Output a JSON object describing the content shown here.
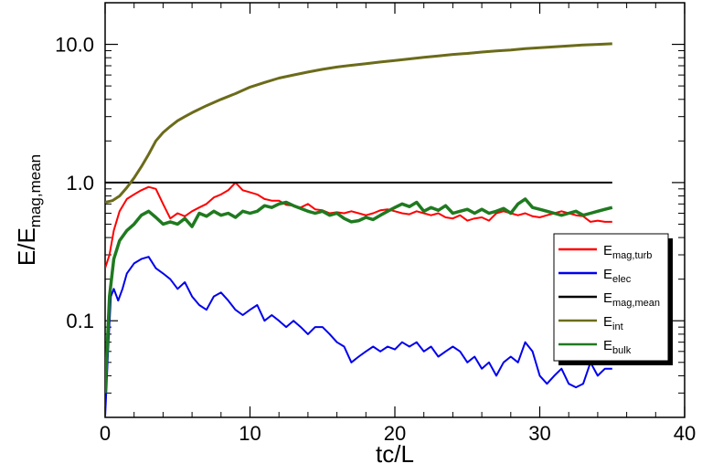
{
  "chart_data": {
    "type": "line",
    "xlabel": "tc/L",
    "ylabel_main": "E/E",
    "ylabel_sub": "mag,mean",
    "xlim": [
      0,
      40
    ],
    "ylim": [
      0.02,
      20
    ],
    "yscale": "log",
    "x_ticks": [
      0,
      10,
      20,
      30,
      40
    ],
    "y_ticks": [
      {
        "value": 0.1,
        "label": "0.1"
      },
      {
        "value": 1.0,
        "label": "1.0"
      },
      {
        "value": 10.0,
        "label": "10.0"
      }
    ],
    "legend_position": "right",
    "series": [
      {
        "name": "E",
        "sub": "mag,turb",
        "color": "#ff0000",
        "width": 2,
        "x": [
          0,
          0.3,
          0.6,
          1,
          1.5,
          2,
          2.5,
          3,
          3.5,
          4,
          4.5,
          5,
          5.5,
          6,
          6.5,
          7,
          7.5,
          8,
          8.5,
          9,
          9.5,
          10,
          10.5,
          11,
          11.5,
          12,
          12.5,
          13,
          13.5,
          14,
          14.5,
          15,
          15.5,
          16,
          16.5,
          17,
          17.5,
          18,
          18.5,
          19,
          19.5,
          20,
          20.5,
          21,
          21.5,
          22,
          22.5,
          23,
          23.5,
          24,
          24.5,
          25,
          25.5,
          26,
          26.5,
          27,
          27.5,
          28,
          28.5,
          29,
          29.5,
          30,
          30.5,
          31,
          31.5,
          32,
          32.5,
          33,
          33.5,
          34,
          34.5,
          35
        ],
        "y": [
          0.24,
          0.3,
          0.45,
          0.62,
          0.76,
          0.82,
          0.88,
          0.93,
          0.9,
          0.7,
          0.55,
          0.6,
          0.57,
          0.62,
          0.66,
          0.7,
          0.78,
          0.82,
          0.88,
          1.0,
          0.88,
          0.85,
          0.82,
          0.76,
          0.74,
          0.74,
          0.69,
          0.68,
          0.66,
          0.7,
          0.64,
          0.63,
          0.6,
          0.61,
          0.6,
          0.62,
          0.6,
          0.58,
          0.6,
          0.63,
          0.64,
          0.62,
          0.6,
          0.59,
          0.62,
          0.6,
          0.58,
          0.6,
          0.56,
          0.55,
          0.58,
          0.53,
          0.55,
          0.56,
          0.53,
          0.6,
          0.62,
          0.6,
          0.58,
          0.6,
          0.57,
          0.56,
          0.58,
          0.6,
          0.62,
          0.6,
          0.58,
          0.57,
          0.52,
          0.53,
          0.52,
          0.52
        ]
      },
      {
        "name": "E",
        "sub": "elec",
        "color": "#0000ee",
        "width": 2,
        "x": [
          0,
          0.2,
          0.4,
          0.6,
          0.9,
          1.2,
          1.5,
          2,
          2.5,
          3,
          3.5,
          4,
          4.5,
          5,
          5.5,
          6,
          6.5,
          7,
          7.5,
          8,
          8.5,
          9,
          9.5,
          10,
          10.5,
          11,
          11.5,
          12,
          12.5,
          13,
          13.5,
          14,
          14.5,
          15,
          15.5,
          16,
          16.5,
          17,
          17.5,
          18,
          18.5,
          19,
          19.5,
          20,
          20.5,
          21,
          21.5,
          22,
          22.5,
          23,
          23.5,
          24,
          24.5,
          25,
          25.5,
          26,
          26.5,
          27,
          27.5,
          28,
          28.5,
          29,
          29.5,
          30,
          30.5,
          31,
          31.5,
          32,
          32.5,
          33,
          33.5,
          34,
          34.5,
          35
        ],
        "y": [
          0.02,
          0.06,
          0.15,
          0.17,
          0.14,
          0.17,
          0.22,
          0.26,
          0.28,
          0.29,
          0.24,
          0.22,
          0.2,
          0.17,
          0.19,
          0.15,
          0.13,
          0.12,
          0.15,
          0.16,
          0.14,
          0.12,
          0.11,
          0.12,
          0.13,
          0.1,
          0.11,
          0.1,
          0.09,
          0.1,
          0.09,
          0.08,
          0.09,
          0.09,
          0.08,
          0.07,
          0.065,
          0.05,
          0.055,
          0.06,
          0.065,
          0.06,
          0.065,
          0.062,
          0.07,
          0.065,
          0.07,
          0.06,
          0.065,
          0.055,
          0.06,
          0.065,
          0.06,
          0.05,
          0.055,
          0.045,
          0.05,
          0.04,
          0.05,
          0.055,
          0.05,
          0.07,
          0.06,
          0.04,
          0.035,
          0.04,
          0.045,
          0.035,
          0.033,
          0.035,
          0.05,
          0.04,
          0.045,
          0.045
        ]
      },
      {
        "name": "E",
        "sub": "mag,mean",
        "color": "#000000",
        "width": 2,
        "x": [
          0,
          35
        ],
        "y": [
          1.0,
          1.0
        ]
      },
      {
        "name": "E",
        "sub": "int",
        "color": "#6b6b1a",
        "width": 3,
        "x": [
          0,
          0.5,
          1,
          1.5,
          2,
          2.5,
          3,
          3.5,
          4,
          4.5,
          5,
          5.5,
          6,
          7,
          8,
          9,
          10,
          11,
          12,
          13,
          14,
          15,
          16,
          17,
          18,
          19,
          20,
          21,
          22,
          23,
          24,
          25,
          26,
          27,
          28,
          29,
          30,
          31,
          32,
          33,
          34,
          35
        ],
        "y": [
          0.72,
          0.74,
          0.8,
          0.92,
          1.08,
          1.3,
          1.6,
          2.0,
          2.3,
          2.55,
          2.8,
          3.0,
          3.2,
          3.6,
          4.0,
          4.4,
          4.9,
          5.3,
          5.7,
          6.0,
          6.3,
          6.6,
          6.85,
          7.05,
          7.25,
          7.45,
          7.65,
          7.85,
          8.05,
          8.25,
          8.45,
          8.6,
          8.8,
          8.95,
          9.1,
          9.3,
          9.45,
          9.6,
          9.75,
          9.9,
          10.0,
          10.1
        ]
      },
      {
        "name": "E",
        "sub": "bulk",
        "color": "#1f7a1f",
        "width": 3.5,
        "x": [
          0,
          0.3,
          0.6,
          1,
          1.5,
          2,
          2.5,
          3,
          3.5,
          4,
          4.5,
          5,
          5.5,
          6,
          6.5,
          7,
          7.5,
          8,
          8.5,
          9,
          9.5,
          10,
          10.5,
          11,
          11.5,
          12,
          12.5,
          13,
          13.5,
          14,
          14.5,
          15,
          15.5,
          16,
          16.5,
          17,
          17.5,
          18,
          18.5,
          19,
          19.5,
          20,
          20.5,
          21,
          21.5,
          22,
          22.5,
          23,
          23.5,
          24,
          24.5,
          25,
          25.5,
          26,
          26.5,
          27,
          27.5,
          28,
          28.5,
          29,
          29.5,
          30,
          30.5,
          31,
          31.5,
          32,
          32.5,
          33,
          33.5,
          34,
          34.5,
          35
        ],
        "y": [
          0.03,
          0.15,
          0.28,
          0.38,
          0.45,
          0.5,
          0.58,
          0.62,
          0.56,
          0.5,
          0.52,
          0.5,
          0.55,
          0.48,
          0.6,
          0.57,
          0.62,
          0.58,
          0.6,
          0.56,
          0.62,
          0.6,
          0.62,
          0.68,
          0.66,
          0.7,
          0.72,
          0.68,
          0.65,
          0.62,
          0.6,
          0.62,
          0.58,
          0.6,
          0.55,
          0.52,
          0.53,
          0.56,
          0.54,
          0.58,
          0.62,
          0.66,
          0.7,
          0.67,
          0.72,
          0.62,
          0.66,
          0.63,
          0.68,
          0.6,
          0.62,
          0.64,
          0.6,
          0.64,
          0.6,
          0.62,
          0.65,
          0.6,
          0.7,
          0.76,
          0.66,
          0.64,
          0.62,
          0.6,
          0.58,
          0.6,
          0.62,
          0.58,
          0.6,
          0.62,
          0.64,
          0.66
        ]
      }
    ]
  }
}
